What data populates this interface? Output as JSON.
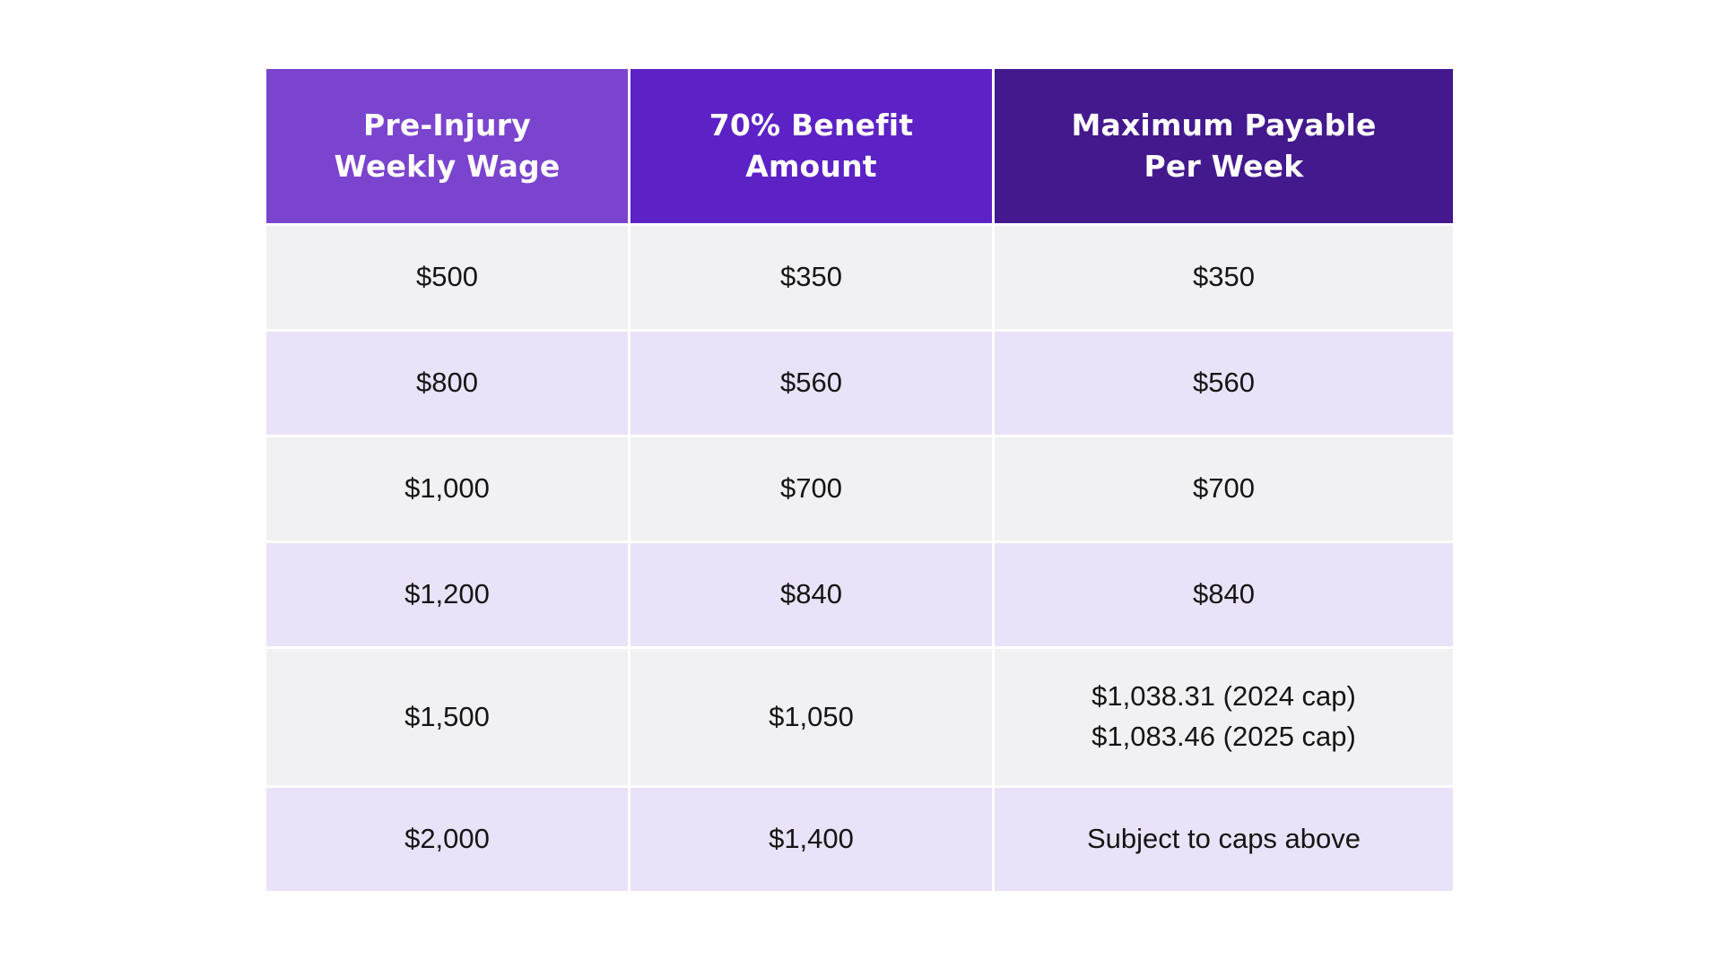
{
  "page": {
    "background": "#FFFFFF"
  },
  "table": {
    "headers": [
      {
        "label": "Pre-Injury\nWeekly Wage",
        "bg": "#7B44CE"
      },
      {
        "label": "70% Benefit\nAmount",
        "bg": "#5C22C5"
      },
      {
        "label": "Maximum Payable\nPer Week",
        "bg": "#43198D"
      }
    ],
    "rows": [
      {
        "wage": "$500",
        "benefit": "$350",
        "max": "$350"
      },
      {
        "wage": "$800",
        "benefit": "$560",
        "max": "$560"
      },
      {
        "wage": "$1,000",
        "benefit": "$700",
        "max": "$700"
      },
      {
        "wage": "$1,200",
        "benefit": "$840",
        "max": "$840"
      },
      {
        "wage": "$1,500",
        "benefit": "$1,050",
        "max": "$1,038.31 (2024 cap)\n$1,083.46 (2025 cap)"
      },
      {
        "wage": "$2,000",
        "benefit": "$1,400",
        "max": "Subject to caps above"
      }
    ],
    "colors": {
      "row_gray": "#F1F0F2",
      "row_lavender": "#EAE2F8",
      "header_text": "#FFFFFF",
      "body_text": "#151515",
      "gutter": "#FFFFFF"
    }
  }
}
